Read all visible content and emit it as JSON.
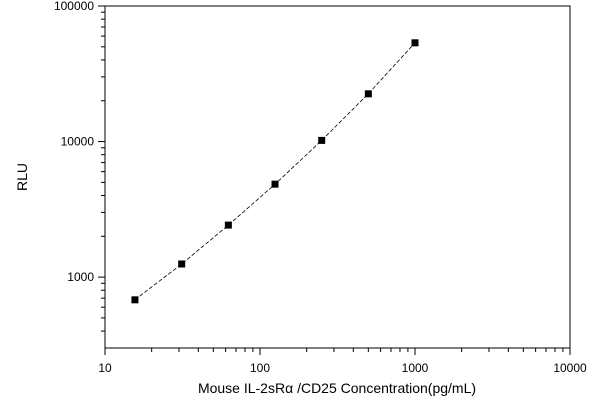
{
  "chart_data": {
    "type": "scatter",
    "title": "",
    "xlabel": "Mouse IL-2sRα /CD25 Concentration(pg/mL)",
    "ylabel": "RLU",
    "x_scale": "log",
    "y_scale": "log",
    "xlim": [
      10,
      10000
    ],
    "ylim": [
      300,
      100000
    ],
    "x_ticks": [
      10,
      100,
      1000,
      10000
    ],
    "y_ticks": [
      1000,
      10000,
      100000
    ],
    "x_tick_labels": [
      "10",
      "100",
      "1000",
      "10000"
    ],
    "y_tick_labels": [
      "1000",
      "10000",
      "100000"
    ],
    "grid": false,
    "legend": "none",
    "series": [
      {
        "x": [
          15.6,
          31.25,
          62.5,
          125,
          250,
          500,
          1000
        ],
        "y": [
          680,
          1250,
          2420,
          4850,
          10200,
          22500,
          53500
        ],
        "marker": "square",
        "line": "dashed-fit",
        "color": "#000000"
      }
    ]
  }
}
